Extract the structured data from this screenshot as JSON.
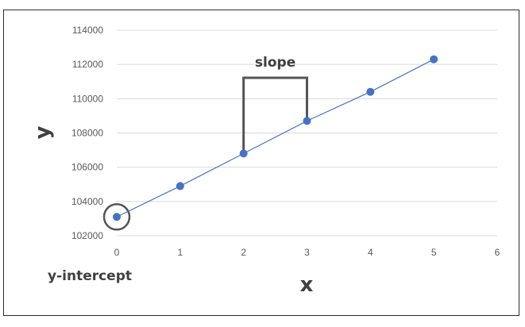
{
  "chart_data": {
    "type": "line",
    "title": "",
    "xlabel": "x",
    "ylabel": "y",
    "x": [
      0,
      1,
      2,
      3,
      4,
      5
    ],
    "series": [
      {
        "values": [
          103100,
          104900,
          106800,
          108700,
          110400,
          112300
        ]
      }
    ],
    "xlim": [
      0,
      6
    ],
    "ylim": [
      102000,
      114000
    ],
    "xticks": [
      0,
      1,
      2,
      3,
      4,
      5,
      6
    ],
    "yticks": [
      102000,
      104000,
      106000,
      108000,
      110000,
      112000,
      114000
    ],
    "grid": "horizontal",
    "colors": {
      "series": "#4472c4",
      "annotation": "#555555",
      "grid": "#d9d9d9"
    },
    "annotations": {
      "slope_label": "slope",
      "intercept_label": "y-intercept",
      "slope_from_x": 2,
      "slope_to_x": 3,
      "intercept_x": 0
    }
  }
}
